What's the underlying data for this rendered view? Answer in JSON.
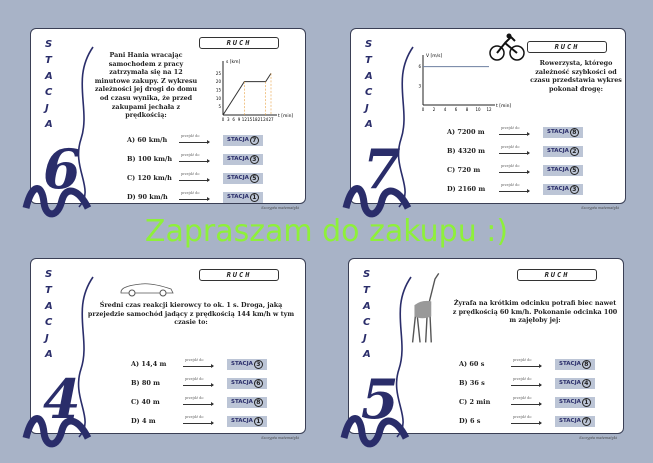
{
  "stacja_letters": [
    "S",
    "T",
    "A",
    "C",
    "J",
    "A"
  ],
  "button_prefix": "STACJA",
  "goto_label": "przejdź do",
  "topic": "RUCH",
  "footer": "Szczypta matematyki",
  "watermark": "Zapraszam do zakupu :)",
  "colors": {
    "navy": "#2a2d6a",
    "background": "#a8b3c7",
    "watermark": "#8ef03a",
    "button": "#bcc5d6"
  },
  "stations": [
    {
      "number": "6",
      "question": "Pani Hania wracając samochodem z pracy zatrzymała się na 12 minutowe zakupy. Z wykresu zależności jej drogi do domu od czasu wynika, że przed zakupami jechała z prędkością:",
      "answers": [
        {
          "label": "A) 60 km/h",
          "target": "7"
        },
        {
          "label": "B) 100 km/h",
          "target": "3"
        },
        {
          "label": "C) 120 km/h",
          "target": "5"
        },
        {
          "label": "D) 90 km/h",
          "target": "1"
        }
      ],
      "chart_data": {
        "type": "line",
        "ylabel": "s [km]",
        "xlabel": "t [min]",
        "x_ticks": [
          0,
          3,
          6,
          9,
          12,
          15,
          18,
          21,
          24,
          27
        ],
        "y_ticks": [
          5,
          10,
          15,
          20,
          25
        ],
        "x": [
          0,
          12,
          24,
          27
        ],
        "y": [
          0,
          20,
          20,
          25
        ]
      }
    },
    {
      "number": "7",
      "icon": "bicycle-icon",
      "question": "Rowerzysta, którego zależność szybkości od czasu przedstawia wykres pokonał drogę:",
      "answers": [
        {
          "label": "A) 7200 m",
          "target": "8"
        },
        {
          "label": "B) 4320 m",
          "target": "2"
        },
        {
          "label": "C) 720 m",
          "target": "5"
        },
        {
          "label": "D) 2160 m",
          "target": "3"
        }
      ],
      "chart_data": {
        "type": "line",
        "ylabel": "V [m/s]",
        "xlabel": "t [min]",
        "x_ticks": [
          0,
          2,
          4,
          6,
          8,
          10,
          12
        ],
        "y_ticks": [
          3,
          6
        ],
        "x": [
          0,
          12
        ],
        "y": [
          6,
          6
        ]
      }
    },
    {
      "number": "4",
      "icon": "car-icon",
      "question": "Średni czas reakcji kierowcy to ok. 1 s. Droga, jaką przejedzie samochód jadący z prędkością 144 km/h w tym czasie to:",
      "answers": [
        {
          "label": "A) 14,4 m",
          "target": "3"
        },
        {
          "label": "B) 80 m",
          "target": "6"
        },
        {
          "label": "C) 40 m",
          "target": "8"
        },
        {
          "label": "D) 4 m",
          "target": "1"
        }
      ]
    },
    {
      "number": "5",
      "icon": "giraffe-icon",
      "question": "Żyrafa na krótkim odcinku potrafi biec nawet z prędkością 60 km/h. Pokonanie odcinka 100 m zajęłoby jej:",
      "answers": [
        {
          "label": "A) 60 s",
          "target": "8"
        },
        {
          "label": "B) 36 s",
          "target": "4"
        },
        {
          "label": "C) 2 min",
          "target": "1"
        },
        {
          "label": "D) 6 s",
          "target": "7"
        }
      ]
    }
  ]
}
